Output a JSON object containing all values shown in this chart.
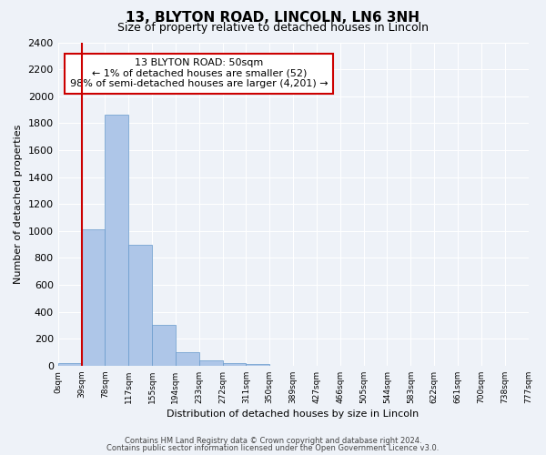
{
  "title": "13, BLYTON ROAD, LINCOLN, LN6 3NH",
  "subtitle": "Size of property relative to detached houses in Lincoln",
  "xlabel": "Distribution of detached houses by size in Lincoln",
  "ylabel": "Number of detached properties",
  "bar_color": "#aec6e8",
  "bar_edge_color": "#6699cc",
  "vline_color": "#cc0000",
  "bar_values": [
    20,
    1010,
    1860,
    900,
    300,
    100,
    42,
    20,
    10,
    0,
    0,
    0,
    0,
    0,
    0,
    0,
    0,
    0,
    0,
    0
  ],
  "x_labels": [
    "0sqm",
    "39sqm",
    "78sqm",
    "117sqm",
    "155sqm",
    "194sqm",
    "233sqm",
    "272sqm",
    "311sqm",
    "350sqm",
    "389sqm",
    "427sqm",
    "466sqm",
    "505sqm",
    "544sqm",
    "583sqm",
    "622sqm",
    "661sqm",
    "700sqm",
    "738sqm",
    "777sqm"
  ],
  "ylim": [
    0,
    2400
  ],
  "yticks": [
    0,
    200,
    400,
    600,
    800,
    1000,
    1200,
    1400,
    1600,
    1800,
    2000,
    2200,
    2400
  ],
  "vline_x_index": 1,
  "annotation_title": "13 BLYTON ROAD: 50sqm",
  "annotation_line1": "← 1% of detached houses are smaller (52)",
  "annotation_line2": "98% of semi-detached houses are larger (4,201) →",
  "annotation_box_color": "#ffffff",
  "annotation_box_edge": "#cc0000",
  "footer1": "Contains HM Land Registry data © Crown copyright and database right 2024.",
  "footer2": "Contains public sector information licensed under the Open Government Licence v3.0.",
  "background_color": "#eef2f8",
  "plot_bg_color": "#eef2f8"
}
